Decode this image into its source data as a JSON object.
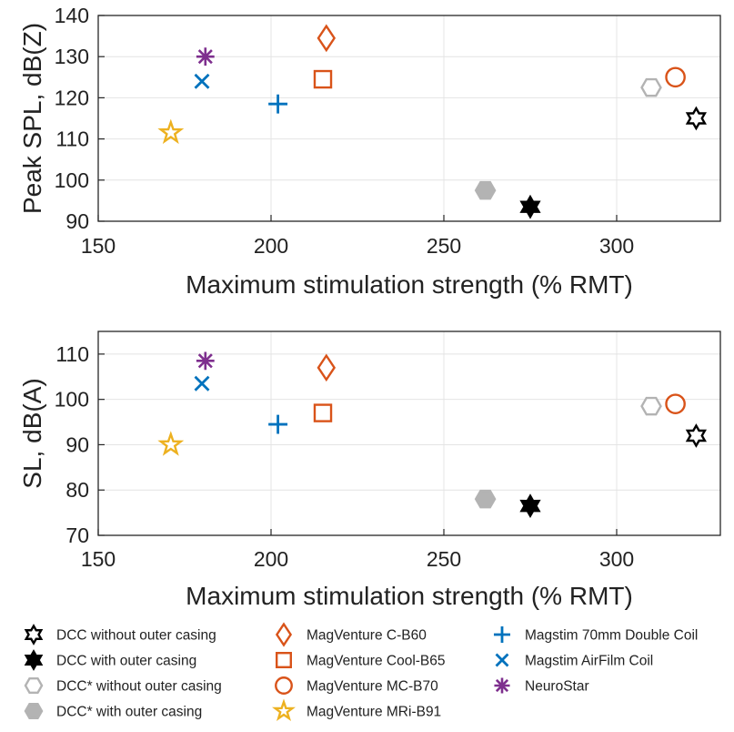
{
  "chart_data": [
    {
      "type": "scatter",
      "xlabel": "Maximum stimulation strength (% RMT)",
      "ylabel": "Peak SPL, dB(Z)",
      "xlim": [
        150,
        330
      ],
      "ylim": [
        90,
        140
      ],
      "xticks": [
        "150",
        "200",
        "250",
        "300"
      ],
      "yticks": [
        "90",
        "100",
        "110",
        "120",
        "130",
        "140"
      ],
      "grid": true,
      "series": [
        {
          "name": "DCC without outer casing",
          "x": [
            323
          ],
          "y": [
            115
          ]
        },
        {
          "name": "DCC with outer casing",
          "x": [
            275
          ],
          "y": [
            93.5
          ]
        },
        {
          "name": "DCC* without outer casing",
          "x": [
            310
          ],
          "y": [
            122.5
          ]
        },
        {
          "name": "DCC* with outer casing",
          "x": [
            262
          ],
          "y": [
            97.5
          ]
        },
        {
          "name": "MagVenture C-B60",
          "x": [
            216
          ],
          "y": [
            134.5
          ]
        },
        {
          "name": "MagVenture Cool-B65",
          "x": [
            215
          ],
          "y": [
            124.5
          ]
        },
        {
          "name": "MagVenture MC-B70",
          "x": [
            317
          ],
          "y": [
            125
          ]
        },
        {
          "name": "MagVenture MRi-B91",
          "x": [
            171
          ],
          "y": [
            111.5
          ]
        },
        {
          "name": "Magstim 70mm Double Coil",
          "x": [
            202
          ],
          "y": [
            118.5
          ]
        },
        {
          "name": "Magstim AirFilm Coil",
          "x": [
            180
          ],
          "y": [
            124
          ]
        },
        {
          "name": "NeuroStar",
          "x": [
            181
          ],
          "y": [
            130
          ]
        }
      ]
    },
    {
      "type": "scatter",
      "xlabel": "Maximum stimulation strength (% RMT)",
      "ylabel": "SL, dB(A)",
      "xlim": [
        150,
        330
      ],
      "ylim": [
        70,
        115
      ],
      "xticks": [
        "150",
        "200",
        "250",
        "300"
      ],
      "yticks": [
        "70",
        "80",
        "90",
        "100",
        "110"
      ],
      "grid": true,
      "series": [
        {
          "name": "DCC without outer casing",
          "x": [
            323
          ],
          "y": [
            92
          ]
        },
        {
          "name": "DCC with outer casing",
          "x": [
            275
          ],
          "y": [
            76.5
          ]
        },
        {
          "name": "DCC* without outer casing",
          "x": [
            310
          ],
          "y": [
            98.5
          ]
        },
        {
          "name": "DCC* with outer casing",
          "x": [
            262
          ],
          "y": [
            78
          ]
        },
        {
          "name": "MagVenture C-B60",
          "x": [
            216
          ],
          "y": [
            107
          ]
        },
        {
          "name": "MagVenture Cool-B65",
          "x": [
            215
          ],
          "y": [
            97
          ]
        },
        {
          "name": "MagVenture MC-B70",
          "x": [
            317
          ],
          "y": [
            99
          ]
        },
        {
          "name": "MagVenture MRi-B91",
          "x": [
            171
          ],
          "y": [
            90
          ]
        },
        {
          "name": "Magstim 70mm Double Coil",
          "x": [
            202
          ],
          "y": [
            94.5
          ]
        },
        {
          "name": "Magstim AirFilm Coil",
          "x": [
            180
          ],
          "y": [
            103.5
          ]
        },
        {
          "name": "NeuroStar",
          "x": [
            181
          ],
          "y": [
            108.5
          ]
        }
      ]
    }
  ],
  "legend": {
    "placement": "bottom",
    "entries": [
      {
        "label": "DCC without outer casing",
        "marker": "hexagram-open",
        "color": "#000000"
      },
      {
        "label": "DCC with outer casing",
        "marker": "hexagram-filled",
        "color": "#000000"
      },
      {
        "label": "DCC* without outer casing",
        "marker": "hexagon-open",
        "color": "#b3b3b3"
      },
      {
        "label": "DCC* with outer casing",
        "marker": "hexagon-filled",
        "color": "#b3b3b3"
      },
      {
        "label": "MagVenture C-B60",
        "marker": "diamond-open",
        "color": "#d95319"
      },
      {
        "label": "MagVenture Cool-B65",
        "marker": "square-open",
        "color": "#d95319"
      },
      {
        "label": "MagVenture MC-B70",
        "marker": "circle-open",
        "color": "#d95319"
      },
      {
        "label": "MagVenture MRi-B91",
        "marker": "pentagram-open",
        "color": "#edb120"
      },
      {
        "label": "Magstim 70mm Double Coil",
        "marker": "plus",
        "color": "#0072bd"
      },
      {
        "label": "Magstim AirFilm Coil",
        "marker": "cross",
        "color": "#0072bd"
      },
      {
        "label": "NeuroStar",
        "marker": "asterisk",
        "color": "#7e2f8e"
      }
    ]
  }
}
